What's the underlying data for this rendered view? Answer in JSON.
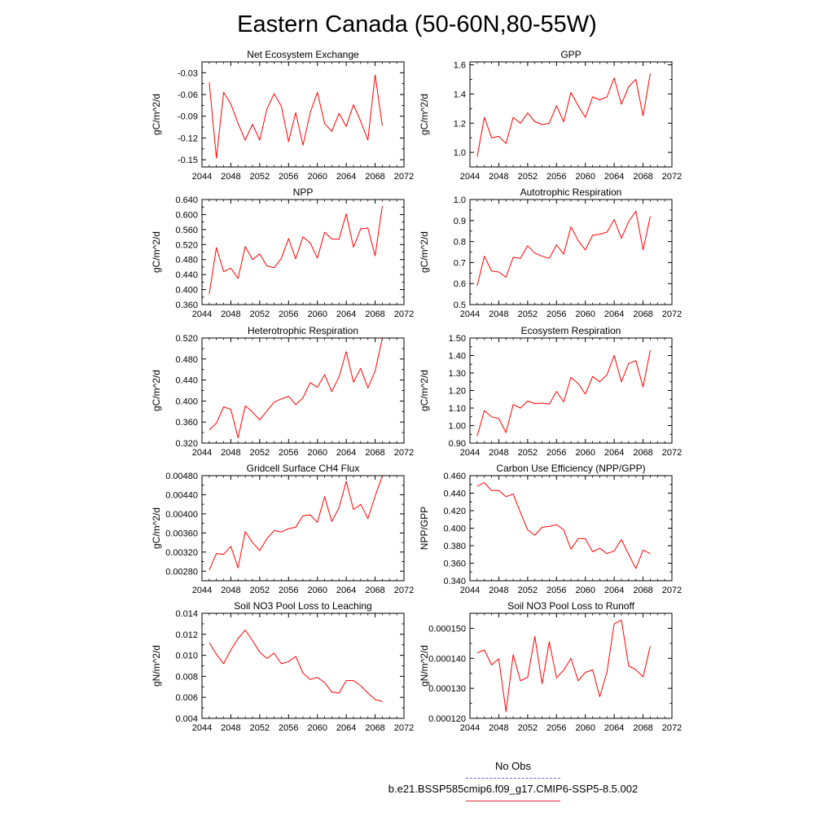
{
  "title": "Eastern Canada (50-60N,80-55W)",
  "legend": {
    "obs_label": "No Obs",
    "obs_color": "#6666cc",
    "model_label": "b.e21.BSSP585cmip6.f09_g17.CMIP6-SSP5-8.5.002",
    "model_color": "#e0303a"
  },
  "line_color": "#ff0000",
  "chart_data": [
    {
      "type": "line",
      "title": "Net Ecosystem Exchange",
      "ylabel": "gC/m^2/d",
      "xlim": [
        2044,
        2072
      ],
      "xticks": [
        2044,
        2048,
        2052,
        2056,
        2060,
        2064,
        2068,
        2072
      ],
      "ylim": [
        -0.16,
        -0.015
      ],
      "yticks": [
        -0.15,
        -0.12,
        -0.09,
        -0.06,
        -0.03
      ],
      "ytick_labels": [
        "-0.15",
        "-0.12",
        "-0.09",
        "-0.06",
        "-0.03"
      ],
      "x": [
        2045,
        2046,
        2047,
        2048,
        2049,
        2050,
        2051,
        2052,
        2053,
        2054,
        2055,
        2056,
        2057,
        2058,
        2059,
        2060,
        2061,
        2062,
        2063,
        2064,
        2065,
        2066,
        2067,
        2068,
        2069
      ],
      "y": [
        -0.043,
        -0.148,
        -0.057,
        -0.073,
        -0.1,
        -0.123,
        -0.101,
        -0.123,
        -0.08,
        -0.059,
        -0.076,
        -0.125,
        -0.085,
        -0.13,
        -0.085,
        -0.057,
        -0.1,
        -0.111,
        -0.086,
        -0.104,
        -0.074,
        -0.097,
        -0.123,
        -0.033,
        -0.103
      ]
    },
    {
      "type": "line",
      "title": "GPP",
      "ylabel": "gC/m^2/d",
      "xlim": [
        2044,
        2072
      ],
      "xticks": [
        2044,
        2048,
        2052,
        2056,
        2060,
        2064,
        2068,
        2072
      ],
      "ylim": [
        0.9,
        1.62
      ],
      "yticks": [
        1.0,
        1.2,
        1.4,
        1.6
      ],
      "ytick_labels": [
        "1.0",
        "1.2",
        "1.4",
        "1.6"
      ],
      "x": [
        2045,
        2046,
        2047,
        2048,
        2049,
        2050,
        2051,
        2052,
        2053,
        2054,
        2055,
        2056,
        2057,
        2058,
        2059,
        2060,
        2061,
        2062,
        2063,
        2064,
        2065,
        2066,
        2067,
        2068,
        2069
      ],
      "y": [
        0.97,
        1.24,
        1.1,
        1.11,
        1.06,
        1.24,
        1.2,
        1.27,
        1.21,
        1.19,
        1.2,
        1.32,
        1.21,
        1.41,
        1.32,
        1.24,
        1.38,
        1.36,
        1.38,
        1.51,
        1.33,
        1.45,
        1.5,
        1.25,
        1.54
      ]
    },
    {
      "type": "line",
      "title": "NPP",
      "ylabel": "gC/m^2/d",
      "xlim": [
        2044,
        2072
      ],
      "xticks": [
        2044,
        2048,
        2052,
        2056,
        2060,
        2064,
        2068,
        2072
      ],
      "ylim": [
        0.36,
        0.64
      ],
      "yticks": [
        0.36,
        0.4,
        0.44,
        0.48,
        0.52,
        0.56,
        0.6,
        0.64
      ],
      "ytick_labels": [
        "0.360",
        "0.400",
        "0.440",
        "0.480",
        "0.520",
        "0.560",
        "0.600",
        "0.640"
      ],
      "x": [
        2045,
        2046,
        2047,
        2048,
        2049,
        2050,
        2051,
        2052,
        2053,
        2054,
        2055,
        2056,
        2057,
        2058,
        2059,
        2060,
        2061,
        2062,
        2063,
        2064,
        2065,
        2066,
        2067,
        2068,
        2069
      ],
      "y": [
        0.388,
        0.512,
        0.448,
        0.457,
        0.43,
        0.515,
        0.48,
        0.495,
        0.463,
        0.458,
        0.483,
        0.536,
        0.482,
        0.541,
        0.524,
        0.484,
        0.553,
        0.535,
        0.534,
        0.602,
        0.513,
        0.562,
        0.564,
        0.49,
        0.623
      ]
    },
    {
      "type": "line",
      "title": "Autotrophic Respiration",
      "ylabel": "gC/m^2/d",
      "xlim": [
        2044,
        2072
      ],
      "xticks": [
        2044,
        2048,
        2052,
        2056,
        2060,
        2064,
        2068,
        2072
      ],
      "ylim": [
        0.5,
        1.0
      ],
      "yticks": [
        0.5,
        0.6,
        0.7,
        0.8,
        0.9,
        1.0
      ],
      "ytick_labels": [
        "0.5",
        "0.6",
        "0.7",
        "0.8",
        "0.9",
        "1.0"
      ],
      "x": [
        2045,
        2046,
        2047,
        2048,
        2049,
        2050,
        2051,
        2052,
        2053,
        2054,
        2055,
        2056,
        2057,
        2058,
        2059,
        2060,
        2061,
        2062,
        2063,
        2064,
        2065,
        2066,
        2067,
        2068,
        2069
      ],
      "y": [
        0.59,
        0.73,
        0.66,
        0.655,
        0.63,
        0.725,
        0.72,
        0.78,
        0.745,
        0.73,
        0.72,
        0.785,
        0.74,
        0.87,
        0.805,
        0.76,
        0.83,
        0.835,
        0.845,
        0.905,
        0.815,
        0.895,
        0.945,
        0.76,
        0.92
      ]
    },
    {
      "type": "line",
      "title": "Heterotrophic Respiration",
      "ylabel": "gC/m^2/d",
      "xlim": [
        2044,
        2072
      ],
      "xticks": [
        2044,
        2048,
        2052,
        2056,
        2060,
        2064,
        2068,
        2072
      ],
      "ylim": [
        0.32,
        0.52
      ],
      "yticks": [
        0.32,
        0.36,
        0.4,
        0.44,
        0.48,
        0.52
      ],
      "ytick_labels": [
        "0.320",
        "0.360",
        "0.400",
        "0.440",
        "0.480",
        "0.520"
      ],
      "x": [
        2045,
        2046,
        2047,
        2048,
        2049,
        2050,
        2051,
        2052,
        2053,
        2054,
        2055,
        2056,
        2057,
        2058,
        2059,
        2060,
        2061,
        2062,
        2063,
        2064,
        2065,
        2066,
        2067,
        2068,
        2069
      ],
      "y": [
        0.345,
        0.358,
        0.389,
        0.384,
        0.33,
        0.391,
        0.379,
        0.364,
        0.381,
        0.398,
        0.404,
        0.409,
        0.393,
        0.406,
        0.435,
        0.426,
        0.45,
        0.418,
        0.446,
        0.494,
        0.436,
        0.462,
        0.425,
        0.457,
        0.519
      ]
    },
    {
      "type": "line",
      "title": "Ecosystem Respiration",
      "ylabel": "gC/m^2/d",
      "xlim": [
        2044,
        2072
      ],
      "xticks": [
        2044,
        2048,
        2052,
        2056,
        2060,
        2064,
        2068,
        2072
      ],
      "ylim": [
        0.9,
        1.5
      ],
      "yticks": [
        0.9,
        1.0,
        1.1,
        1.2,
        1.3,
        1.4,
        1.5
      ],
      "ytick_labels": [
        "0.90",
        "1.00",
        "1.10",
        "1.20",
        "1.30",
        "1.40",
        "1.50"
      ],
      "x": [
        2045,
        2046,
        2047,
        2048,
        2049,
        2050,
        2051,
        2052,
        2053,
        2054,
        2055,
        2056,
        2057,
        2058,
        2059,
        2060,
        2061,
        2062,
        2063,
        2064,
        2065,
        2066,
        2067,
        2068,
        2069
      ],
      "y": [
        0.94,
        1.085,
        1.05,
        1.04,
        0.96,
        1.12,
        1.1,
        1.14,
        1.125,
        1.128,
        1.122,
        1.195,
        1.135,
        1.275,
        1.24,
        1.18,
        1.28,
        1.25,
        1.29,
        1.4,
        1.25,
        1.355,
        1.37,
        1.22,
        1.43
      ]
    },
    {
      "type": "line",
      "title": "Gridcell Surface CH4 Flux",
      "ylabel": "gC/m^2/d",
      "xlim": [
        2044,
        2072
      ],
      "xticks": [
        2044,
        2048,
        2052,
        2056,
        2060,
        2064,
        2068,
        2072
      ],
      "ylim": [
        0.0026,
        0.0048
      ],
      "yticks": [
        0.0028,
        0.0032,
        0.0036,
        0.004,
        0.0044,
        0.0048
      ],
      "ytick_labels": [
        "0.00280",
        "0.00320",
        "0.00360",
        "0.00400",
        "0.00440",
        "0.00480"
      ],
      "x": [
        2045,
        2046,
        2047,
        2048,
        2049,
        2050,
        2051,
        2052,
        2053,
        2054,
        2055,
        2056,
        2057,
        2058,
        2059,
        2060,
        2061,
        2062,
        2063,
        2064,
        2065,
        2066,
        2067,
        2068,
        2069
      ],
      "y": [
        0.00282,
        0.00317,
        0.00315,
        0.00332,
        0.00287,
        0.00363,
        0.0034,
        0.00323,
        0.00348,
        0.00365,
        0.00362,
        0.00369,
        0.00372,
        0.00396,
        0.00398,
        0.00382,
        0.00436,
        0.00384,
        0.00413,
        0.00468,
        0.00409,
        0.0042,
        0.0039,
        0.00437,
        0.00479
      ]
    },
    {
      "type": "line",
      "title": "Carbon Use Efficiency (NPP/GPP)",
      "ylabel": "NPP/GPP",
      "xlim": [
        2044,
        2072
      ],
      "xticks": [
        2044,
        2048,
        2052,
        2056,
        2060,
        2064,
        2068,
        2072
      ],
      "ylim": [
        0.34,
        0.46
      ],
      "yticks": [
        0.34,
        0.36,
        0.38,
        0.4,
        0.42,
        0.44,
        0.46
      ],
      "ytick_labels": [
        "0.340",
        "0.360",
        "0.380",
        "0.400",
        "0.420",
        "0.440",
        "0.460"
      ],
      "x": [
        2045,
        2046,
        2047,
        2048,
        2049,
        2050,
        2051,
        2052,
        2053,
        2054,
        2055,
        2056,
        2057,
        2058,
        2059,
        2060,
        2061,
        2062,
        2063,
        2064,
        2065,
        2066,
        2067,
        2068,
        2069
      ],
      "y": [
        0.448,
        0.452,
        0.443,
        0.443,
        0.436,
        0.439,
        0.418,
        0.398,
        0.392,
        0.401,
        0.402,
        0.404,
        0.398,
        0.376,
        0.388,
        0.388,
        0.373,
        0.377,
        0.371,
        0.374,
        0.387,
        0.37,
        0.354,
        0.375,
        0.371
      ]
    },
    {
      "type": "line",
      "title": "Soil NO3 Pool Loss to Leaching",
      "ylabel": "gN/m^2/d",
      "xlim": [
        2044,
        2072
      ],
      "xticks": [
        2044,
        2048,
        2052,
        2056,
        2060,
        2064,
        2068,
        2072
      ],
      "ylim": [
        0.004,
        0.014
      ],
      "yticks": [
        0.004,
        0.006,
        0.008,
        0.01,
        0.012,
        0.014
      ],
      "ytick_labels": [
        "0.004",
        "0.006",
        "0.008",
        "0.010",
        "0.012",
        "0.014"
      ],
      "x": [
        2045,
        2046,
        2047,
        2048,
        2049,
        2050,
        2051,
        2052,
        2053,
        2054,
        2055,
        2056,
        2057,
        2058,
        2059,
        2060,
        2061,
        2062,
        2063,
        2064,
        2065,
        2066,
        2067,
        2068,
        2069
      ],
      "y": [
        0.0112,
        0.0101,
        0.0092,
        0.0105,
        0.0116,
        0.0124,
        0.0114,
        0.0103,
        0.0097,
        0.0102,
        0.0092,
        0.0094,
        0.0099,
        0.0083,
        0.0077,
        0.0079,
        0.0074,
        0.0065,
        0.0064,
        0.0076,
        0.0076,
        0.0071,
        0.0064,
        0.0058,
        0.0056
      ]
    },
    {
      "type": "line",
      "title": "Soil NO3 Pool Loss to Runoff",
      "ylabel": "gN/m^2/d",
      "xlim": [
        2044,
        2072
      ],
      "xticks": [
        2044,
        2048,
        2052,
        2056,
        2060,
        2064,
        2068,
        2072
      ],
      "ylim": [
        0.00012,
        0.000155
      ],
      "yticks": [
        0.00012,
        0.00013,
        0.00014,
        0.00015
      ],
      "ytick_labels": [
        "0.000120",
        "0.000130",
        "0.000140",
        "0.000150"
      ],
      "x": [
        2045,
        2046,
        2047,
        2048,
        2049,
        2050,
        2051,
        2052,
        2053,
        2054,
        2055,
        2056,
        2057,
        2058,
        2059,
        2060,
        2061,
        2062,
        2063,
        2064,
        2065,
        2066,
        2067,
        2068,
        2069
      ],
      "y": [
        0.0001418,
        0.0001428,
        0.0001378,
        0.0001398,
        0.0001222,
        0.0001412,
        0.0001325,
        0.0001337,
        0.0001473,
        0.0001315,
        0.0001455,
        0.0001335,
        0.000136,
        0.00014,
        0.0001325,
        0.0001353,
        0.0001362,
        0.0001272,
        0.0001355,
        0.0001515,
        0.0001527,
        0.0001375,
        0.0001362,
        0.0001338,
        0.000144
      ]
    }
  ]
}
